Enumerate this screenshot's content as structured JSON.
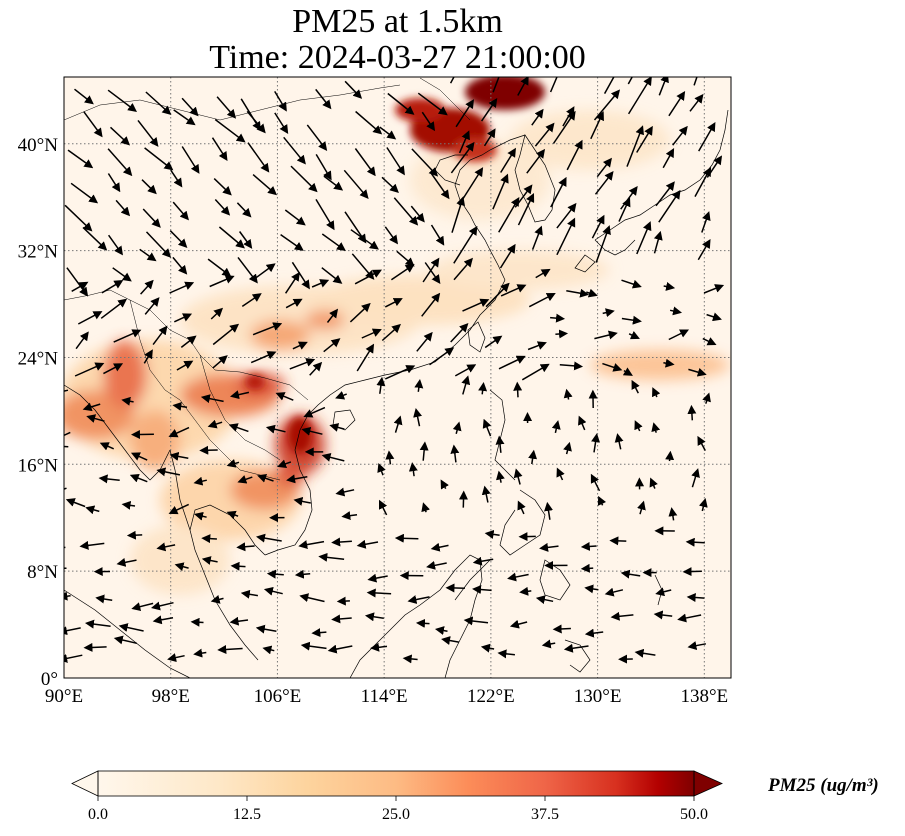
{
  "title": {
    "line1": "PM25 at 1.5km",
    "line2": "Time: 2024-03-27 21:00:00"
  },
  "map": {
    "lon_range": [
      90,
      140
    ],
    "lat_range": [
      0,
      45
    ],
    "lon_ticks": [
      {
        "value": 90,
        "label": "90°E"
      },
      {
        "value": 98,
        "label": "98°E"
      },
      {
        "value": 106,
        "label": "106°E"
      },
      {
        "value": 114,
        "label": "114°E"
      },
      {
        "value": 122,
        "label": "122°E"
      },
      {
        "value": 130,
        "label": "130°E"
      },
      {
        "value": 138,
        "label": "138°E"
      }
    ],
    "lat_ticks": [
      {
        "value": 0,
        "label": "0°"
      },
      {
        "value": 8,
        "label": "8°N"
      },
      {
        "value": 16,
        "label": "16°N"
      },
      {
        "value": 24,
        "label": "24°N"
      },
      {
        "value": 32,
        "label": "32°N"
      },
      {
        "value": 40,
        "label": "40°N"
      }
    ],
    "gridlines": "dotted",
    "colormap": "OrRd",
    "colors": {
      "low": "#fff7ec",
      "mid": "#fdbb84",
      "high": "#7f0000"
    }
  },
  "colorbar": {
    "title": "PM25 (ug/m³)",
    "min": 0,
    "max": 50,
    "ticks": [
      "0.0",
      "12.5",
      "25.0",
      "37.5",
      "50.0"
    ],
    "extend": "both"
  }
}
